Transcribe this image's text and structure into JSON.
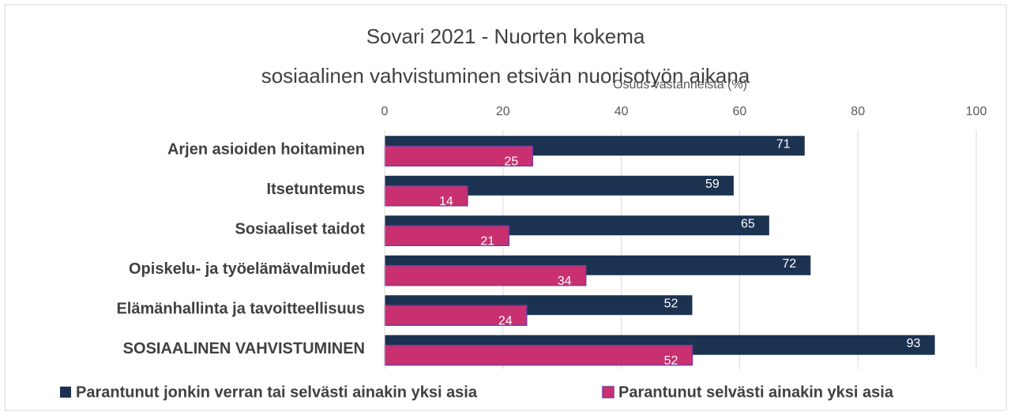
{
  "chart_data": {
    "type": "bar",
    "orientation": "horizontal",
    "title": [
      "Sovari 2021 - Nuorten kokema",
      "sosiaalinen vahvistuminen etsivän nuorisotyön aikana"
    ],
    "x_label": "Osuus vastanneista (%)",
    "categories": [
      "Arjen asioiden hoitaminen",
      "Itsetuntemus",
      "Sosiaaliset taidot",
      "Opiskelu- ja työelämävalmiudet",
      "Elämänhallinta ja tavoitteellisuus",
      "SOSIAALINEN VAHVISTUMINEN"
    ],
    "series": [
      {
        "name": "Parantunut jonkin verran tai selvästi ainakin yksi asia",
        "color": "#1c3251",
        "values": [
          71,
          59,
          65,
          72,
          52,
          93
        ]
      },
      {
        "name": "Parantunut selvästi ainakin yksi asia",
        "color": "#c9306f",
        "values": [
          25,
          14,
          21,
          34,
          24,
          52
        ]
      }
    ],
    "xlim": [
      0,
      100
    ],
    "xticks": [
      0,
      20,
      40,
      60,
      80,
      100
    ],
    "grid": true,
    "legend": "bottom"
  }
}
